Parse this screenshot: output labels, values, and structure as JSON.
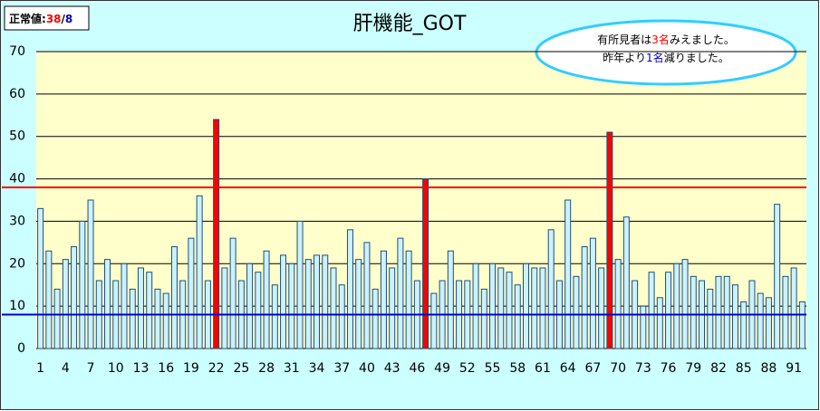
{
  "chart_data": {
    "type": "bar",
    "title": "肝機能_GOT",
    "categories": [
      "1",
      null,
      null,
      "4",
      null,
      null,
      "7",
      null,
      null,
      "10",
      null,
      null,
      "13",
      null,
      null,
      "16",
      null,
      null,
      "19",
      null,
      null,
      "22",
      null,
      null,
      "25",
      null,
      null,
      "28",
      null,
      null,
      "31",
      null,
      null,
      "34",
      null,
      null,
      "37",
      null,
      null,
      "40",
      null,
      null,
      "43",
      null,
      null,
      "46",
      null,
      null,
      "49",
      null,
      null,
      "52",
      null,
      null,
      "55",
      null,
      null,
      "58",
      null,
      null,
      "61",
      null,
      null,
      "64",
      null,
      null,
      "67",
      null,
      null,
      "70",
      null,
      null,
      "73",
      null,
      null,
      "76",
      null,
      null,
      "79",
      null,
      null,
      "82",
      null,
      null,
      "85",
      null,
      null,
      "88",
      null,
      null,
      "91",
      null
    ],
    "values": [
      33,
      23,
      14,
      21,
      24,
      30,
      35,
      16,
      21,
      16,
      20,
      14,
      19,
      18,
      14,
      13,
      24,
      16,
      26,
      36,
      16,
      54,
      19,
      26,
      16,
      20,
      18,
      23,
      15,
      22,
      20,
      30,
      21,
      22,
      22,
      19,
      15,
      28,
      21,
      25,
      14,
      23,
      19,
      26,
      23,
      16,
      40,
      13,
      16,
      23,
      16,
      16,
      20,
      14,
      20,
      19,
      18,
      15,
      20,
      19,
      19,
      28,
      16,
      35,
      17,
      24,
      26,
      19,
      51,
      21,
      31,
      16,
      10,
      18,
      12,
      18,
      20,
      21,
      17,
      16,
      14,
      17,
      17,
      15,
      11,
      16,
      13,
      12,
      34,
      17,
      19,
      11
    ],
    "color": "#ccf2ff",
    "edge_color": "#1f4e79",
    "highlight_color": "#ff0000",
    "ylim": [
      0,
      70
    ],
    "yticks": [
      0,
      10,
      20,
      30,
      40,
      50,
      60,
      70
    ],
    "grid": true,
    "reference_lines": [
      {
        "value": 38,
        "label": "38",
        "color": "#ff0000"
      },
      {
        "value": 8,
        "label": "8",
        "color": "#0000cc"
      }
    ],
    "badge": {
      "prefix": "正常値:",
      "separator": "/"
    },
    "annotation": [
      [
        {
          "text": "有所見者は",
          "color": "#000000"
        },
        {
          "text": "3名",
          "color": "#ff0000"
        },
        {
          "text": "みえました。",
          "color": "#000000"
        }
      ],
      [
        {
          "text": "昨年より",
          "color": "#000000"
        },
        {
          "text": "1名",
          "color": "#0000cc"
        },
        {
          "text": "減りました。",
          "color": "#000000"
        }
      ]
    ]
  }
}
